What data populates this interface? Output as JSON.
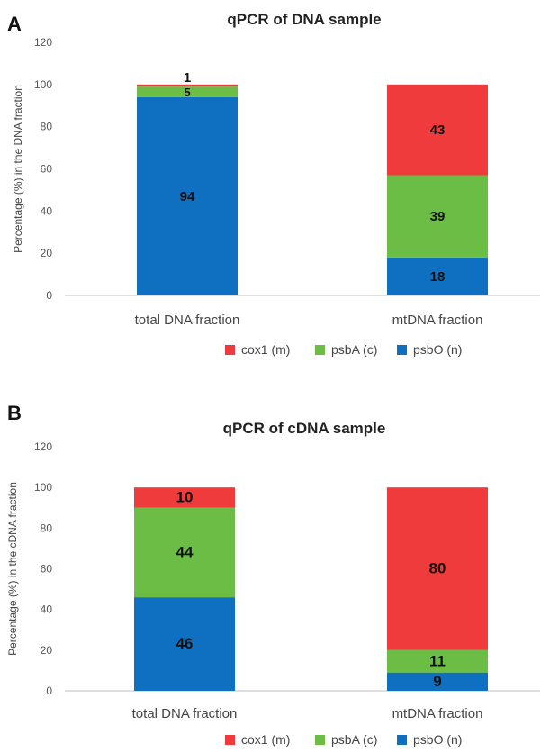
{
  "chart_data": [
    {
      "panel": "A",
      "type": "bar",
      "stacked": true,
      "title": "qPCR of DNA sample",
      "ylabel": "Percentage (%) in the DNA fraction",
      "xlabel": "",
      "ylim": [
        0,
        120
      ],
      "yticks": [
        0,
        20,
        40,
        60,
        80,
        100,
        120
      ],
      "grid": false,
      "legend_position": "bottom",
      "categories": [
        "total DNA fraction",
        "mtDNA fraction"
      ],
      "series": [
        {
          "name": "psbO (n)",
          "color": "#0f6fc0",
          "values": [
            94,
            18
          ],
          "labels": [
            "94",
            "18"
          ]
        },
        {
          "name": "psbA (c)",
          "color": "#6cbd45",
          "values": [
            5,
            39
          ],
          "labels": [
            "5",
            "39"
          ]
        },
        {
          "name": "cox1 (m)",
          "color": "#ef3b3b",
          "values": [
            1,
            43
          ],
          "labels": [
            "1",
            "43"
          ]
        }
      ],
      "legend_order": [
        "cox1 (m)",
        "psbA (c)",
        "psbO (n)"
      ]
    },
    {
      "panel": "B",
      "type": "bar",
      "stacked": true,
      "title": "qPCR of cDNA sample",
      "ylabel": "Percentage (%) in the cDNA fraction",
      "xlabel": "",
      "ylim": [
        0,
        120
      ],
      "yticks": [
        0,
        20,
        40,
        60,
        80,
        100,
        120
      ],
      "grid": false,
      "legend_position": "bottom",
      "categories": [
        "total DNA fraction",
        "mtDNA fraction"
      ],
      "series": [
        {
          "name": "psbO (n)",
          "color": "#0f6fc0",
          "values": [
            46,
            9
          ],
          "labels": [
            "46",
            "9"
          ]
        },
        {
          "name": "psbA (c)",
          "color": "#6cbd45",
          "values": [
            44,
            11
          ],
          "labels": [
            "44",
            "11"
          ]
        },
        {
          "name": "cox1 (m)",
          "color": "#ef3b3b",
          "values": [
            10,
            80
          ],
          "labels": [
            "10",
            "80"
          ]
        }
      ],
      "legend_order": [
        "cox1 (m)",
        "psbA (c)",
        "psbO (n)"
      ]
    }
  ]
}
